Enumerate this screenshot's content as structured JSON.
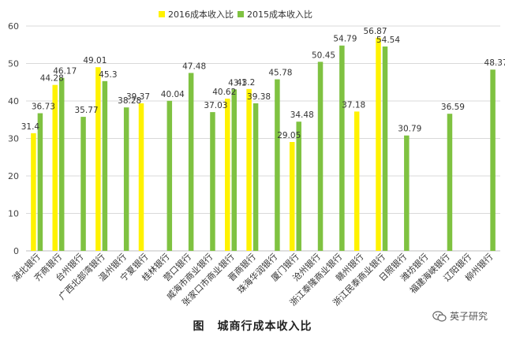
{
  "chart_data": {
    "type": "bar",
    "categories": [
      "湖北银行",
      "齐商银行",
      "台州银行",
      "广西北部湾银行",
      "温州银行",
      "宁夏银行",
      "桂林银行",
      "营口银行",
      "威海市商业银行",
      "张家口市商业银行",
      "晋商银行",
      "珠海华润银行",
      "厦门银行",
      "沧州银行",
      "浙江泰隆商业银行",
      "赣州银行",
      "浙江民泰商业银行",
      "日照银行",
      "潍坊银行",
      "福建海峡银行",
      "辽阳银行",
      "柳州银行"
    ],
    "series": [
      {
        "name": "2016成本收入比",
        "color": "#FFF200",
        "values": [
          31.4,
          44.28,
          null,
          49.01,
          null,
          39.37,
          null,
          null,
          null,
          40.62,
          43.2,
          null,
          29.05,
          null,
          null,
          37.18,
          56.87,
          null,
          null,
          null,
          null,
          null
        ]
      },
      {
        "name": "2015成本收入比",
        "color": "#7FC241",
        "values": [
          36.73,
          46.17,
          35.77,
          45.3,
          38.28,
          null,
          40.04,
          47.48,
          37.03,
          43.1,
          39.38,
          45.78,
          34.48,
          50.45,
          54.79,
          null,
          54.54,
          30.79,
          null,
          36.59,
          null,
          48.37
        ]
      }
    ],
    "ylim": [
      0,
      60
    ],
    "yticks": [
      0,
      10,
      20,
      30,
      40,
      50,
      60
    ],
    "grid": true,
    "legend": "top"
  },
  "caption": {
    "prefix": "图",
    "title": "城商行成本收入比"
  },
  "watermark": {
    "text": "英子研究",
    "icon": "wechat-icon"
  }
}
